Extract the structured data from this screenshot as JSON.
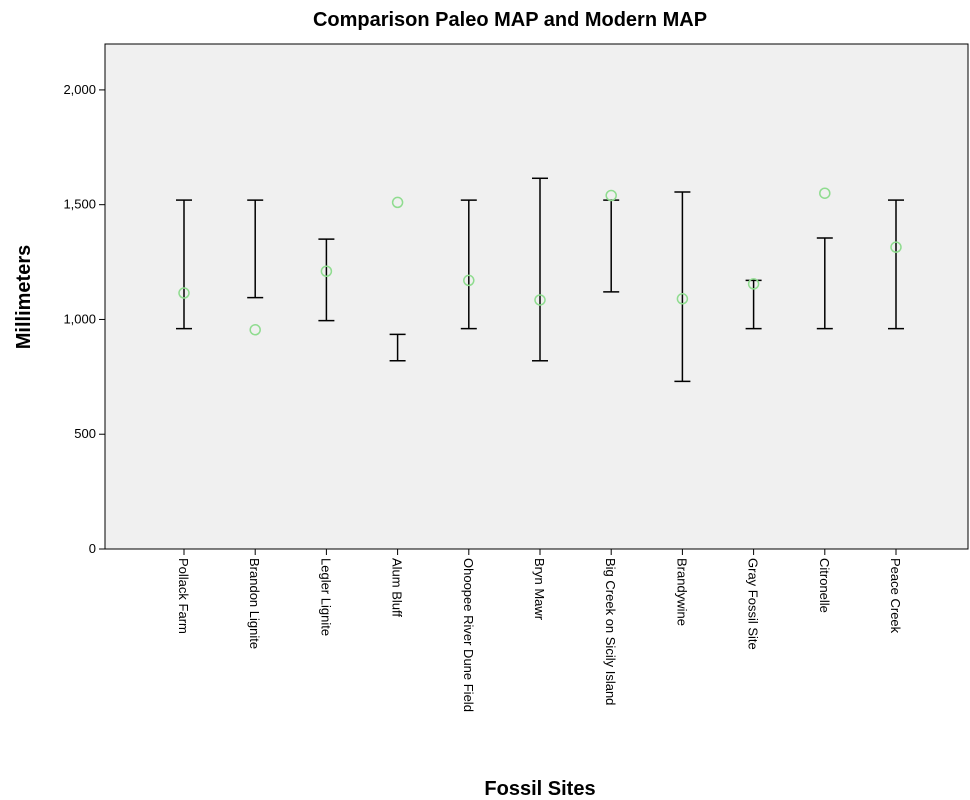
{
  "chart_data": {
    "type": "scatter",
    "title": "Comparison Paleo MAP and Modern MAP",
    "xlabel": "Fossil Sites",
    "ylabel": "Millimeters",
    "ylim": [
      0,
      2200
    ],
    "yticks": [
      0,
      500,
      1000,
      1500,
      2000
    ],
    "ytick_labels": [
      "0",
      "500",
      "1,000",
      "1,500",
      "2,000"
    ],
    "categories": [
      "Pollack Farm",
      "Brandon Lignite",
      "Legler Lignite",
      "Alum Bluff",
      "Ohoopee River Dune Field",
      "Bryn Mawr",
      "Big Creek on Sicily Island",
      "Brandywine",
      "Gray Fossil Site",
      "Citronelle",
      "Peace Creek"
    ],
    "series": [
      {
        "type": "errorbar",
        "low": [
          960,
          1095,
          995,
          820,
          960,
          820,
          1120,
          730,
          960,
          960,
          960
        ],
        "high": [
          1520,
          1520,
          1350,
          935,
          1520,
          1615,
          1520,
          1555,
          1170,
          1355,
          1520
        ]
      },
      {
        "type": "scatter",
        "values": [
          1115,
          955,
          1210,
          1510,
          1170,
          1085,
          1540,
          1090,
          1155,
          1550,
          1315
        ]
      }
    ],
    "grid": false,
    "legend": "none",
    "plot_background": "#f0f0f0",
    "errorbar_color": "#000000",
    "marker_color": "#8fdc8f"
  }
}
